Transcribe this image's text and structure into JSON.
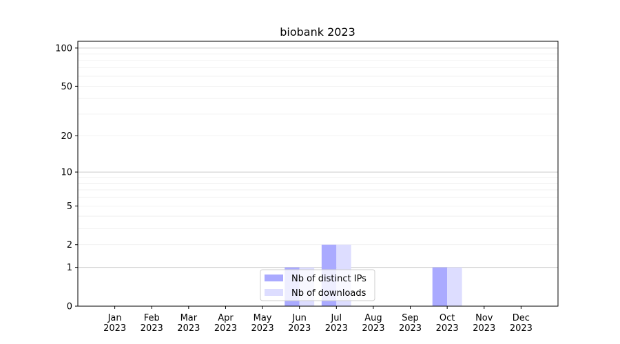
{
  "chart_data": {
    "type": "bar",
    "title": "biobank 2023",
    "xlabel": "",
    "ylabel": "",
    "y_scale": "log(1+y)",
    "ylim": [
      0,
      113
    ],
    "yticks": [
      0,
      1,
      2,
      5,
      10,
      20,
      50,
      100
    ],
    "grid": true,
    "legend_placement": "lower center",
    "categories": [
      "Jan\n2023",
      "Feb\n2023",
      "Mar\n2023",
      "Apr\n2023",
      "May\n2023",
      "Jun\n2023",
      "Jul\n2023",
      "Aug\n2023",
      "Sep\n2023",
      "Oct\n2023",
      "Nov\n2023",
      "Dec\n2023"
    ],
    "series": [
      {
        "name": "Nb of distinct IPs",
        "color": "#aaaaff",
        "values": [
          0,
          0,
          0,
          0,
          0,
          1,
          2,
          0,
          0,
          1,
          0,
          0
        ]
      },
      {
        "name": "Nb of downloads",
        "color": "#ddddff",
        "values": [
          0,
          0,
          0,
          0,
          0,
          1,
          2,
          0,
          0,
          1,
          0,
          0
        ]
      }
    ]
  }
}
